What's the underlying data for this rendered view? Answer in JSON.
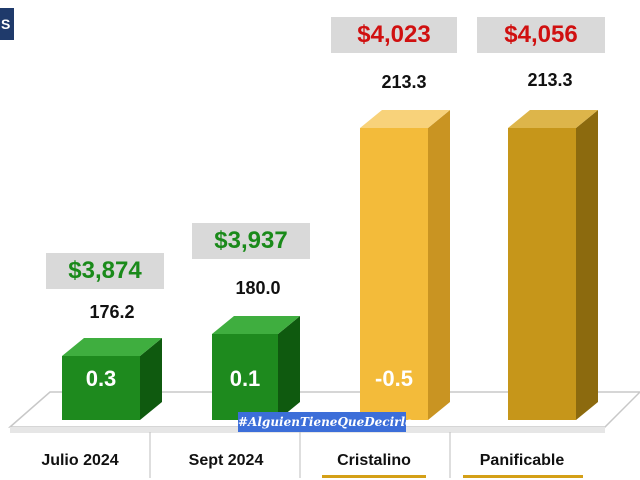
{
  "chart_data": {
    "type": "bar",
    "categories": [
      "Julio 2024",
      "Sept 2024",
      "Cristalino",
      "Panificable"
    ],
    "prices": [
      "$3,874",
      "$3,937",
      "$4,023",
      "$4,056"
    ],
    "index_values": [
      176.2,
      180.0,
      213.3,
      213.3
    ],
    "index_labels": [
      "176.2",
      "180.0",
      "213.3",
      "213.3"
    ],
    "bar_labels": [
      "0.3",
      "0.1",
      "-0.5",
      ""
    ],
    "title": "",
    "xlabel": "",
    "ylabel": ""
  },
  "colors": {
    "green_front": "#1e8a1e",
    "green_side": "#0f5a0f",
    "green_top": "#3fae3f",
    "yellow_front": "#f3bb3a",
    "yellow_side": "#c99422",
    "yellow_top": "#f8d27a",
    "gold_front": "#c6961a",
    "gold_side": "#8c6a0e",
    "gold_top": "#ddb54a",
    "price_green": "#1a8a1a",
    "price_red": "#d01010"
  },
  "watermark": "#AlguienTieneQueDecirlo",
  "logo": "S"
}
